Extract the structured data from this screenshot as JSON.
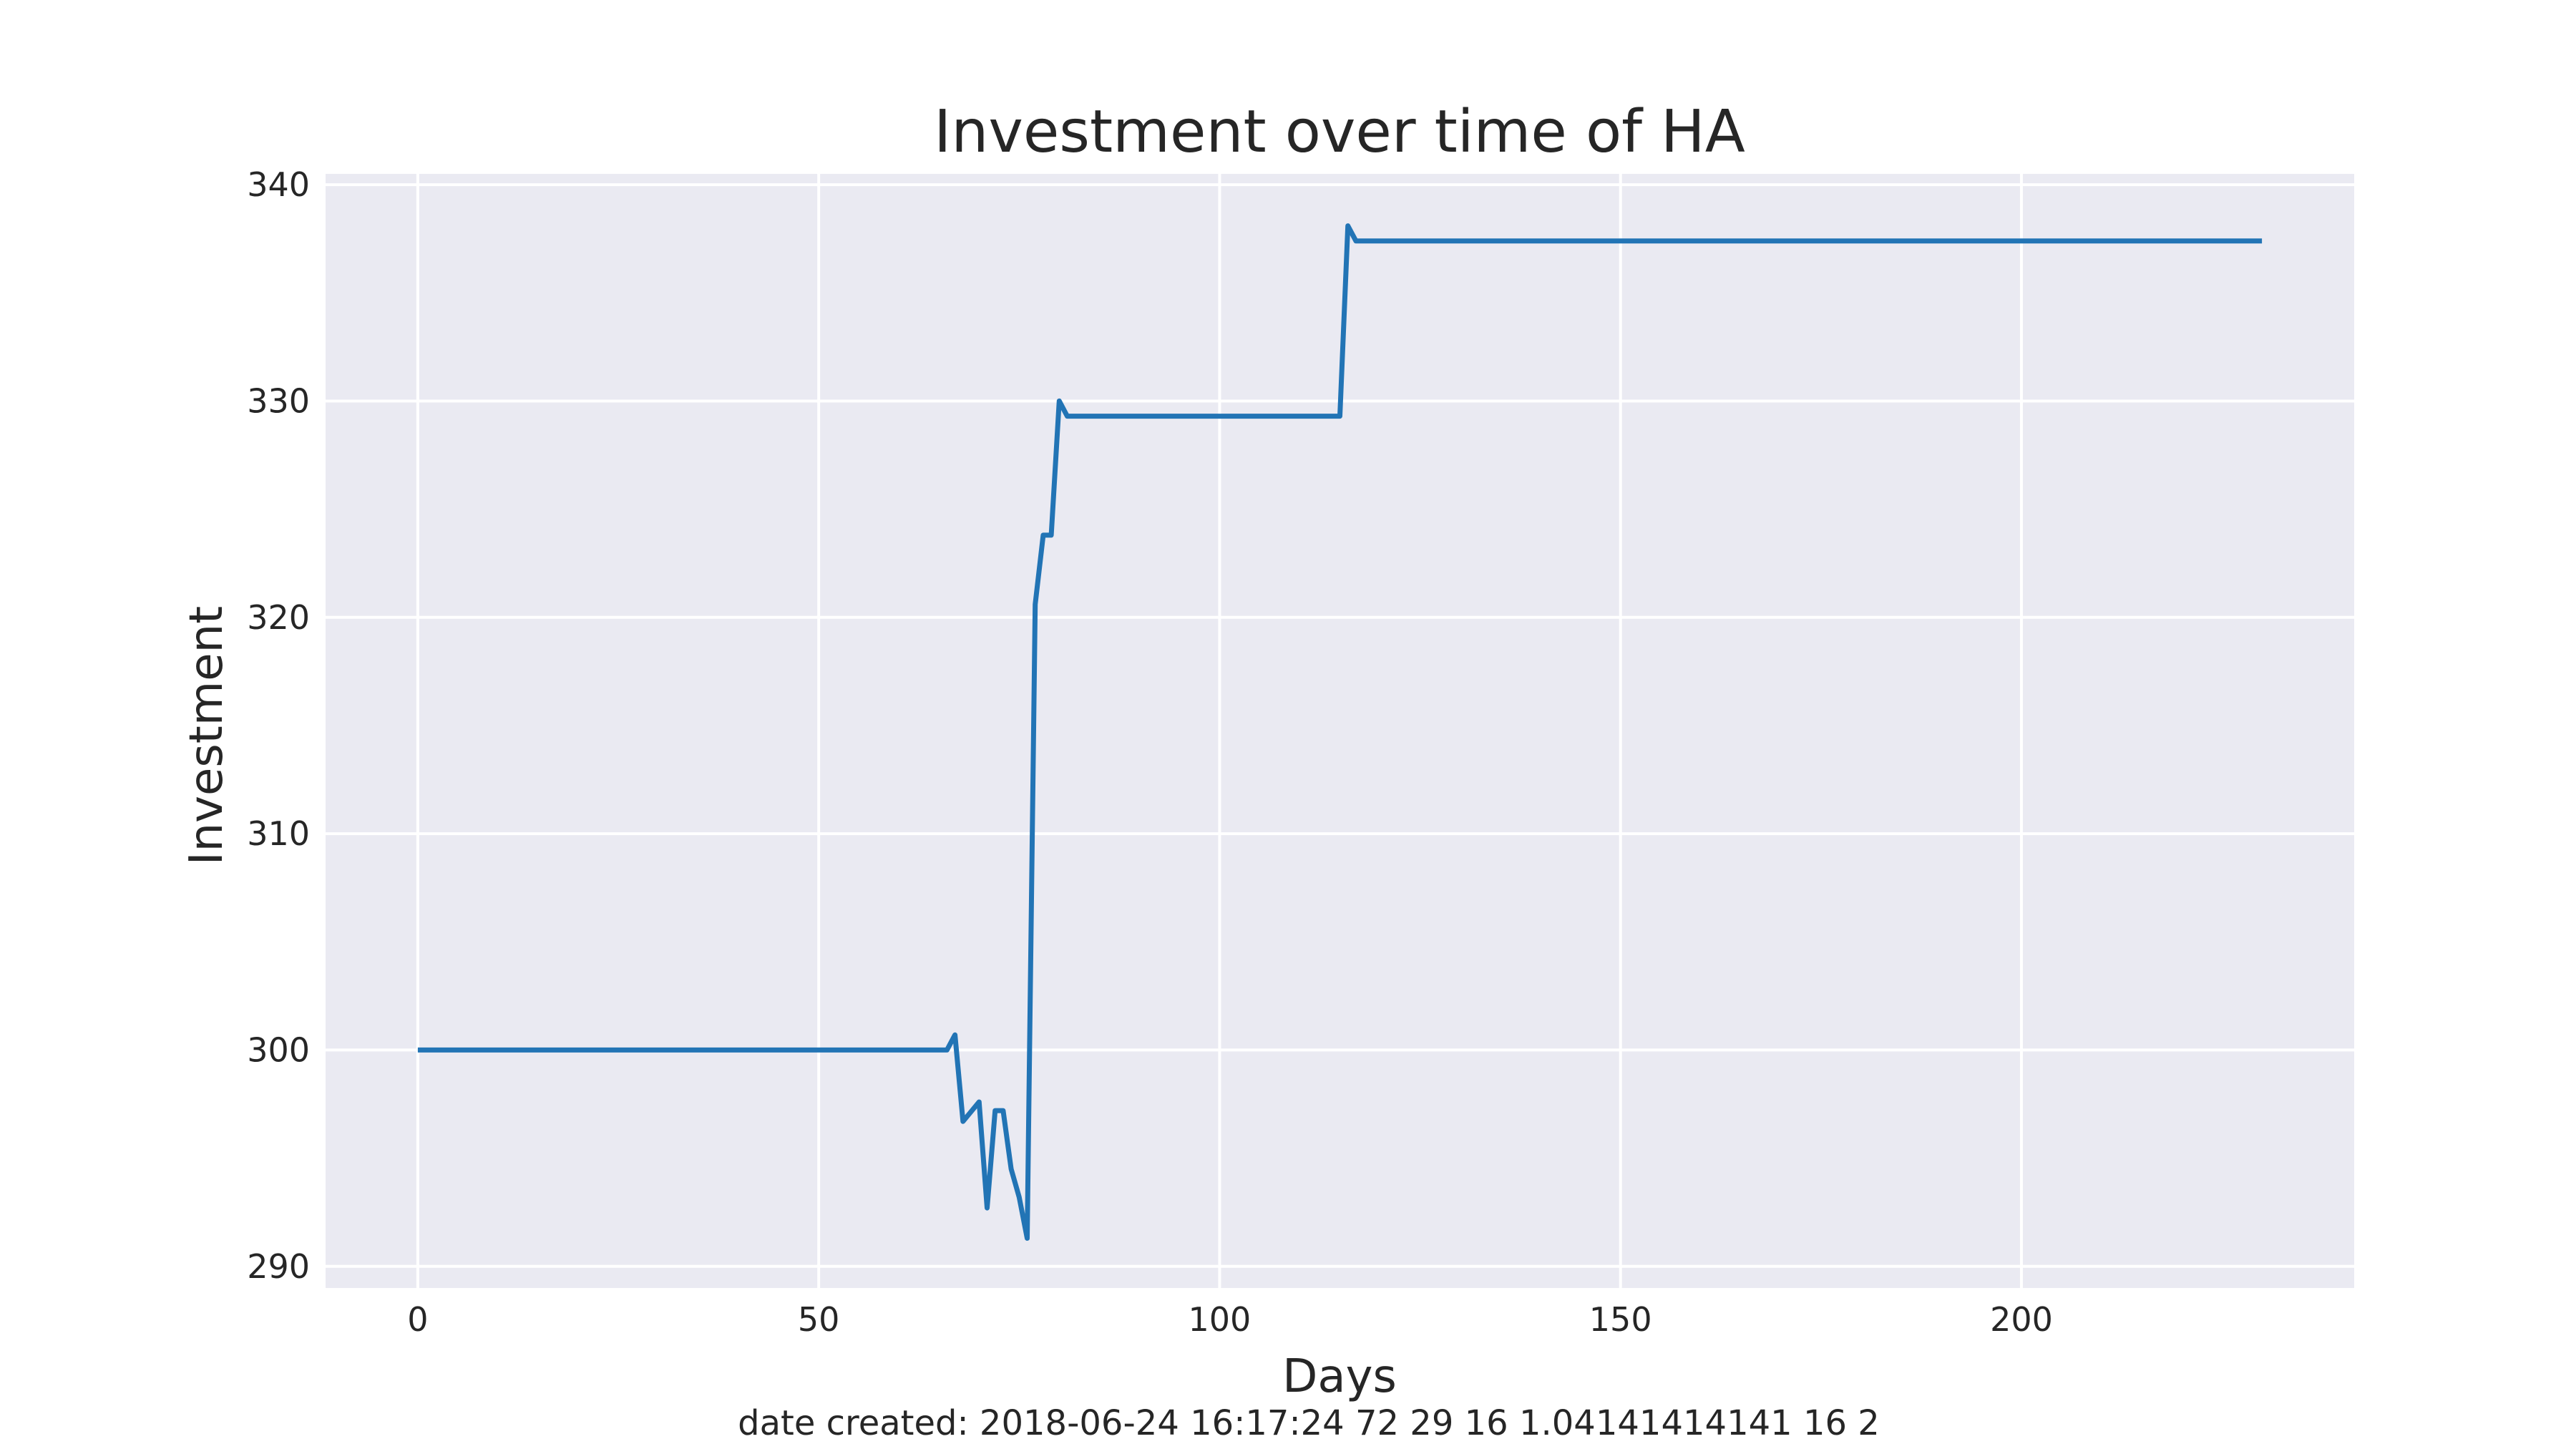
{
  "chart_data": {
    "type": "line",
    "title": "Investment over time of HA",
    "xlabel": "Days",
    "ylabel": "Investment",
    "xlim": [
      -11.5,
      241.5
    ],
    "ylim": [
      289.0,
      340.5
    ],
    "xticks": [
      0,
      50,
      100,
      150,
      200
    ],
    "yticks": [
      290,
      300,
      310,
      320,
      330,
      340
    ],
    "xtick_labels": [
      "0",
      "50",
      "100",
      "150",
      "200"
    ],
    "ytick_labels": [
      "290",
      "300",
      "310",
      "320",
      "330",
      "340"
    ],
    "grid": true,
    "background": "#eaeaf2",
    "grid_color": "#ffffff",
    "series": [
      {
        "color": "#2274b5",
        "points": [
          [
            0,
            300.0
          ],
          [
            66,
            300.0
          ],
          [
            67,
            300.7
          ],
          [
            68,
            296.7
          ],
          [
            70,
            297.6
          ],
          [
            71,
            292.7
          ],
          [
            72,
            297.2
          ],
          [
            73,
            297.2
          ],
          [
            74,
            294.5
          ],
          [
            75,
            293.2
          ],
          [
            76,
            291.3
          ],
          [
            77,
            320.6
          ],
          [
            78,
            323.8
          ],
          [
            79,
            323.8
          ],
          [
            80,
            330.0
          ],
          [
            81,
            329.3
          ],
          [
            115,
            329.3
          ],
          [
            116,
            338.1
          ],
          [
            117,
            337.4
          ],
          [
            230,
            337.4
          ]
        ]
      }
    ]
  },
  "footer": "date created: 2018-06-24 16:17:24 72 29 16 1.04141414141 16 2"
}
